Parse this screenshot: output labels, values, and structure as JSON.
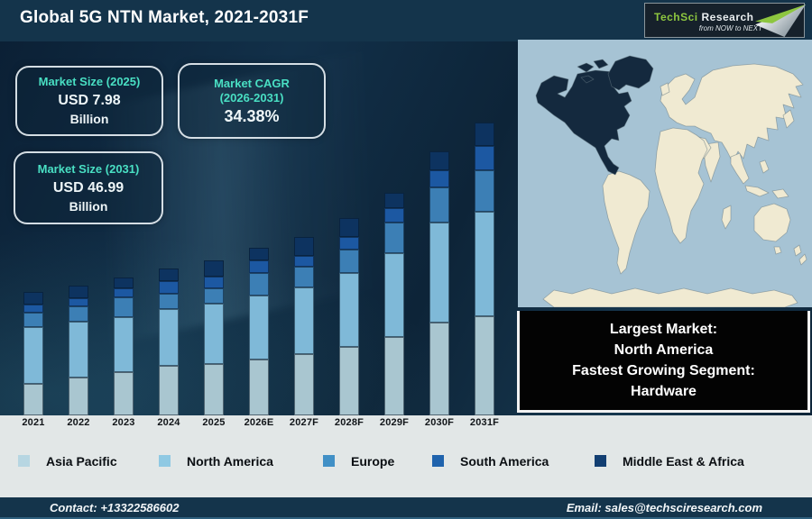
{
  "header": {
    "title": "Global 5G NTN Market, 2021-2031F",
    "logo": {
      "brand_primary": "TechSci",
      "brand_secondary": " Research",
      "tagline": "from NOW to NEXT"
    }
  },
  "stats": [
    {
      "label": "Market Size (2025)",
      "value": "USD 7.98",
      "unit": "Billion"
    },
    {
      "label_line1": "Market CAGR",
      "label_line2": "(2026-2031)",
      "value": "34.38%"
    },
    {
      "label": "Market Size (2031)",
      "value": "USD 46.99",
      "unit": "Billion"
    }
  ],
  "chart_data": {
    "type": "bar",
    "stacked": true,
    "title": "Global 5G NTN Market by region, 2021-2031F",
    "categories": [
      "2021",
      "2022",
      "2023",
      "2024",
      "2025",
      "2026E",
      "2027F",
      "2028F",
      "2029F",
      "2030F",
      "2031F"
    ],
    "value_units": "relative visual height in pixels (no numeric axis shown on chart)",
    "series": [
      {
        "name": "Asia Pacific",
        "color": "#a9c6d0",
        "values": [
          35,
          42,
          48,
          55,
          57,
          62,
          68,
          76,
          87,
          103,
          110
        ]
      },
      {
        "name": "North America",
        "color": "#7fb9d8",
        "values": [
          63,
          62,
          61,
          63,
          67,
          71,
          74,
          82,
          93,
          111,
          116
        ]
      },
      {
        "name": "Europe",
        "color": "#3c7fb5",
        "values": [
          16,
          17,
          22,
          17,
          17,
          25,
          23,
          26,
          34,
          39,
          46
        ]
      },
      {
        "name": "South America",
        "color": "#1c58a2",
        "values": [
          9,
          9,
          10,
          14,
          13,
          14,
          12,
          14,
          16,
          19,
          27
        ]
      },
      {
        "name": "Middle East & Africa",
        "color": "#0d3360",
        "values": [
          14,
          14,
          12,
          14,
          18,
          14,
          21,
          21,
          17,
          21,
          26
        ]
      }
    ],
    "annotations": {
      "market_size_2025_usd_billion": 7.98,
      "market_size_2031_usd_billion": 46.99,
      "cagr_2026_2031_percent": 34.38
    },
    "legend_position": "bottom",
    "grid": false
  },
  "legend": {
    "items": [
      {
        "label": "Asia Pacific",
        "color": "#b7d6e2"
      },
      {
        "label": "North America",
        "color": "#8fc9e3"
      },
      {
        "label": "Europe",
        "color": "#4190c6"
      },
      {
        "label": "South America",
        "color": "#1f63ad"
      },
      {
        "label": "Middle East & Africa",
        "color": "#123f72"
      }
    ]
  },
  "info_box": {
    "lines": [
      "Largest Market:",
      "North America",
      "Fastest Growing Segment:",
      "Hardware"
    ]
  },
  "map": {
    "highlighted_region": "North America"
  },
  "footer": {
    "contact": "Contact: +13322586602",
    "email": "Email: sales@techsciresearch.com"
  },
  "colors": {
    "accent_teal": "#49dfc3",
    "header_bg": "#14344b",
    "strip_bg": "#e2e7e7",
    "info_box_bg": "#030303",
    "map": {
      "ocean": "#a6c3d4",
      "land": "#f0ead2",
      "highlight": "#14293e"
    }
  }
}
